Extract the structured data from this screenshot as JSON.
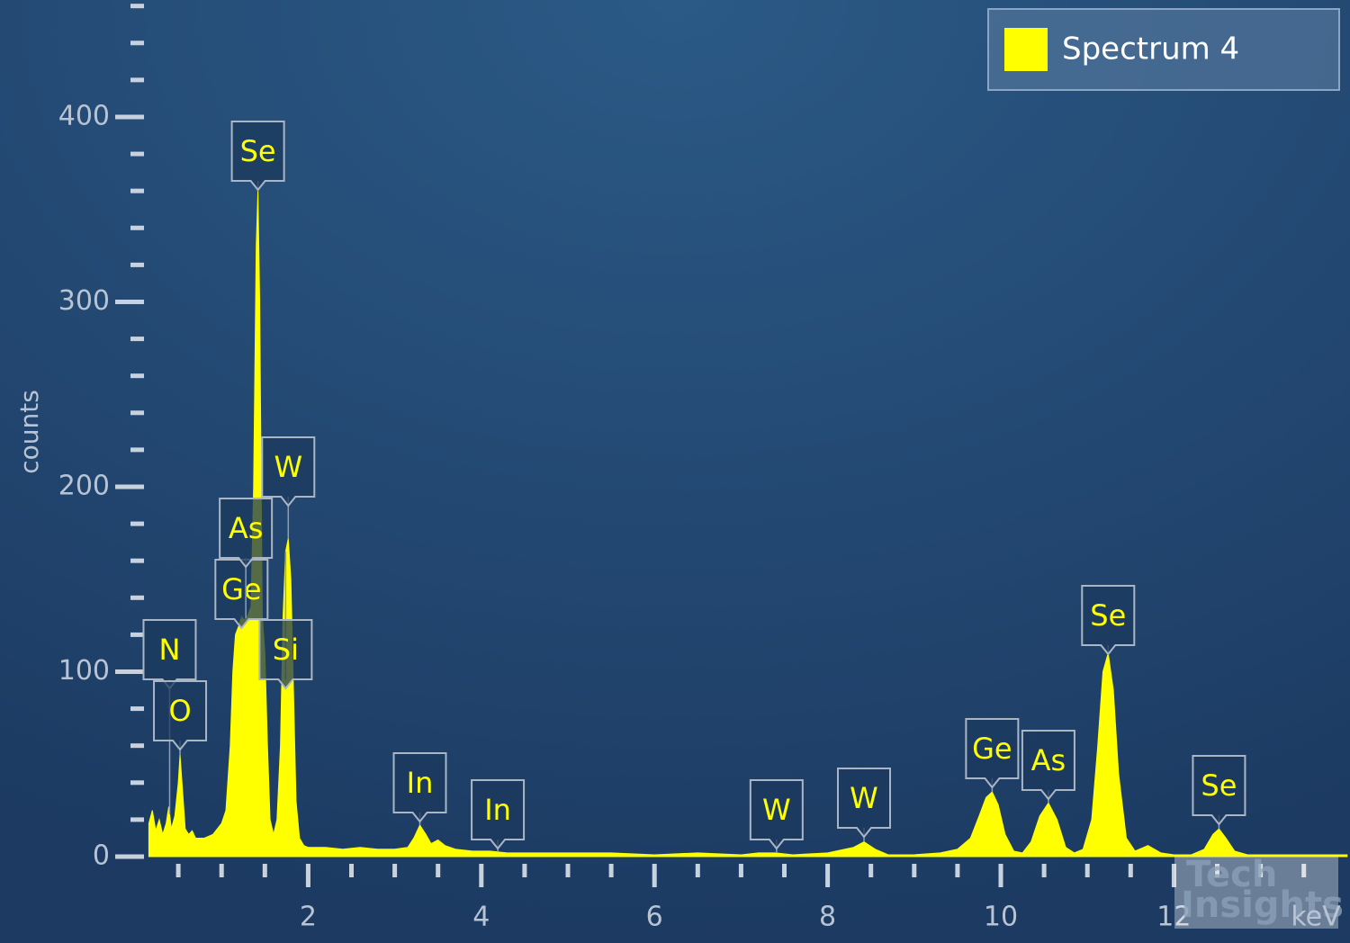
{
  "chart_data": {
    "type": "area",
    "xlabel": "keV",
    "ylabel": "counts",
    "xlim": [
      0.16,
      14.0
    ],
    "ylim": [
      0,
      463
    ],
    "xticks": [
      2,
      4,
      6,
      8,
      10,
      12
    ],
    "xminorticks": [
      0.5,
      1,
      1.5,
      2.5,
      3,
      3.5,
      4.5,
      5,
      5.5,
      6.5,
      7,
      7.5,
      8.5,
      9,
      9.5,
      10.5,
      11,
      11.5,
      12.5,
      13,
      13.5
    ],
    "yticks": [
      0,
      100,
      200,
      300,
      400
    ],
    "yminorticks": [
      20,
      40,
      60,
      80,
      120,
      140,
      160,
      180,
      220,
      240,
      260,
      280,
      320,
      340,
      360,
      380,
      420,
      440,
      460
    ],
    "legend": "top-right",
    "x": [
      0.16,
      0.2,
      0.24,
      0.28,
      0.32,
      0.36,
      0.39,
      0.42,
      0.46,
      0.5,
      0.52,
      0.55,
      0.58,
      0.62,
      0.66,
      0.7,
      0.8,
      0.9,
      1.0,
      1.05,
      1.1,
      1.13,
      1.16,
      1.2,
      1.23,
      1.26,
      1.3,
      1.34,
      1.37,
      1.4,
      1.42,
      1.44,
      1.47,
      1.5,
      1.53,
      1.56,
      1.6,
      1.64,
      1.68,
      1.71,
      1.74,
      1.77,
      1.8,
      1.83,
      1.86,
      1.9,
      1.95,
      2.0,
      2.2,
      2.4,
      2.6,
      2.8,
      3.0,
      3.15,
      3.22,
      3.29,
      3.36,
      3.42,
      3.5,
      3.58,
      3.7,
      3.9,
      4.1,
      4.3,
      4.6,
      5.0,
      5.5,
      6.0,
      6.5,
      7.0,
      7.2,
      7.4,
      7.6,
      8.0,
      8.2,
      8.3,
      8.42,
      8.55,
      8.7,
      9.0,
      9.3,
      9.5,
      9.65,
      9.75,
      9.83,
      9.9,
      9.97,
      10.05,
      10.15,
      10.25,
      10.35,
      10.45,
      10.55,
      10.65,
      10.75,
      10.85,
      10.95,
      11.05,
      11.12,
      11.18,
      11.24,
      11.3,
      11.36,
      11.45,
      11.55,
      11.7,
      11.85,
      12.0,
      12.2,
      12.35,
      12.45,
      12.52,
      12.6,
      12.7,
      12.85,
      13.0,
      13.5,
      14.0
    ],
    "series": [
      {
        "name": "Spectrum 4",
        "color": "#ffff00",
        "values": [
          18,
          25,
          14,
          20,
          12,
          18,
          27,
          15,
          22,
          40,
          55,
          35,
          15,
          12,
          14,
          10,
          10,
          12,
          18,
          25,
          60,
          100,
          120,
          125,
          130,
          128,
          130,
          135,
          200,
          330,
          360,
          300,
          130,
          110,
          60,
          20,
          12,
          20,
          60,
          130,
          165,
          172,
          150,
          90,
          30,
          10,
          6,
          5,
          5,
          4,
          5,
          4,
          4,
          5,
          10,
          17,
          12,
          7,
          9,
          6,
          4,
          3,
          3,
          2,
          2,
          2,
          2,
          1,
          2,
          1,
          2,
          2,
          1,
          2,
          4,
          5,
          8,
          4,
          1,
          1,
          2,
          4,
          10,
          22,
          32,
          35,
          28,
          12,
          3,
          2,
          8,
          22,
          29,
          20,
          5,
          2,
          4,
          20,
          60,
          100,
          110,
          90,
          45,
          10,
          3,
          6,
          2,
          1,
          1,
          4,
          12,
          15,
          10,
          3,
          1,
          1,
          1,
          1
        ]
      }
    ],
    "annotations": [
      {
        "label": "N",
        "x": 0.4
      },
      {
        "label": "O",
        "x": 0.52
      },
      {
        "label": "Ge",
        "x": 1.23
      },
      {
        "label": "As",
        "x": 1.28
      },
      {
        "label": "Se",
        "x": 1.42
      },
      {
        "label": "W",
        "x": 1.77
      },
      {
        "label": "Si",
        "x": 1.74
      },
      {
        "label": "In",
        "x": 3.29
      },
      {
        "label": "In",
        "x": 4.19
      },
      {
        "label": "W",
        "x": 7.41
      },
      {
        "label": "W",
        "x": 8.42
      },
      {
        "label": "Ge",
        "x": 9.9
      },
      {
        "label": "As",
        "x": 10.55
      },
      {
        "label": "Se",
        "x": 11.24
      },
      {
        "label": "Se",
        "x": 12.52
      }
    ]
  },
  "watermark": [
    "Tech",
    "Insights"
  ]
}
